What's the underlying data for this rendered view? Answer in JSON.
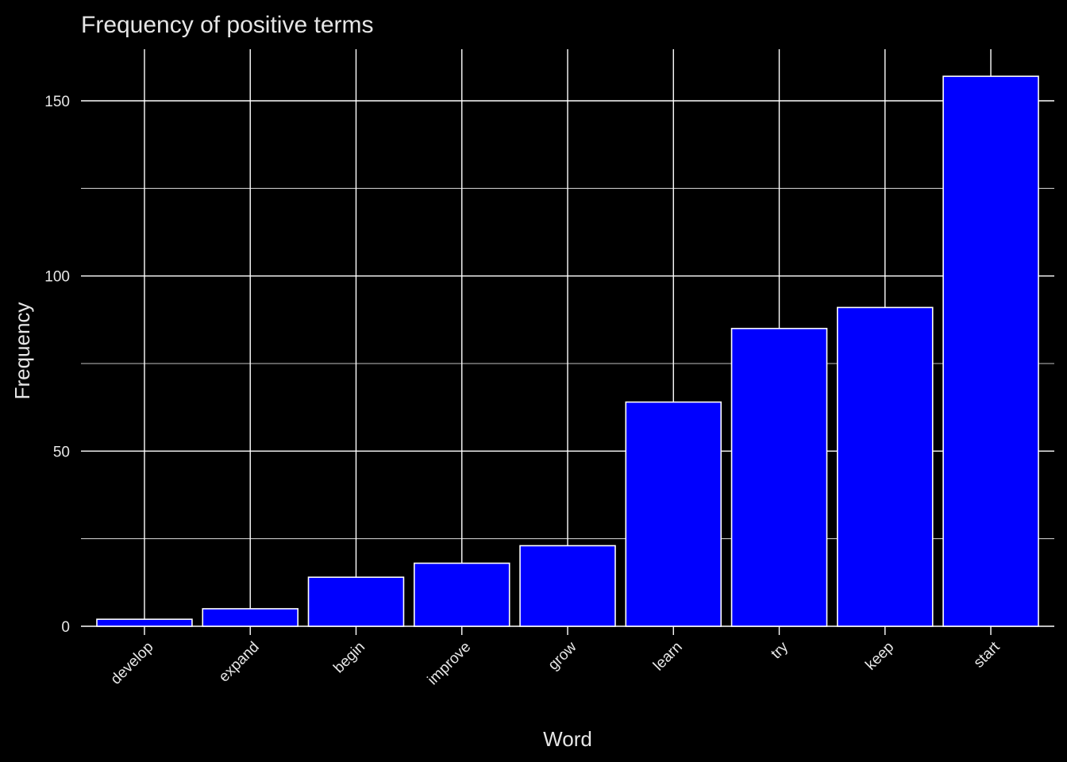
{
  "chart_data": {
    "type": "bar",
    "title": "Frequency of positive terms",
    "xlabel": "Word",
    "ylabel": "Frequency",
    "categories": [
      "develop",
      "expand",
      "begin",
      "improve",
      "grow",
      "learn",
      "try",
      "keep",
      "start"
    ],
    "values": [
      2,
      5,
      14,
      18,
      23,
      64,
      85,
      91,
      157
    ],
    "ylim": [
      0,
      165
    ],
    "yticks": [
      0,
      50,
      100,
      150
    ],
    "yticks_minor": [
      25,
      75,
      125
    ],
    "grid": true,
    "legend": "none",
    "colors": {
      "bar_fill": "#0000ff",
      "bar_stroke": "#ffffff",
      "background": "#000000",
      "grid": "#ffffff",
      "text": "#e6e6e6"
    }
  }
}
